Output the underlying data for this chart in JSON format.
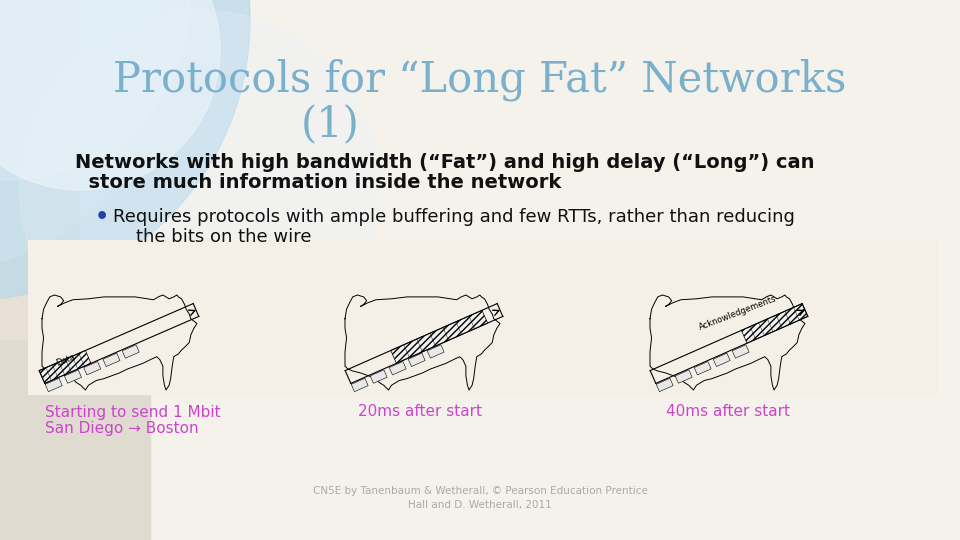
{
  "title_line1": "Protocols for “Long Fat” Networks",
  "title_line2": "(1)",
  "title_color": "#7ab0cc",
  "body_text1_line1": "Networks with high bandwidth (“Fat”) and high delay (“Long”) can",
  "body_text1_line2": "  store much information inside the network",
  "bullet_text_line1": "Requires protocols with ample buffering and few RTTs, rather than reducing",
  "bullet_text_line2": "    the bits on the wire",
  "caption1_line1": "Starting to send 1 Mbit",
  "caption1_line2": "San Diego → Boston",
  "caption2": "20ms after start",
  "caption3": "40ms after start",
  "caption_color": "#cc44cc",
  "footer_text": "CN5E by Tanenbaum & Wetherall, © Pearson Education Prentice\nHall and D. Wetherall, 2011",
  "bg_top_color": "#d0e8f4",
  "bg_bottom_color": "#e8e0d4",
  "white_area_color": "#f8f5f0",
  "panel_color": "#f4f0e8",
  "body_fontsize": 14,
  "bullet_fontsize": 13,
  "title_fontsize": 30,
  "caption_fontsize": 11,
  "footer_fontsize": 7.5,
  "bullet_color": "#2244aa"
}
